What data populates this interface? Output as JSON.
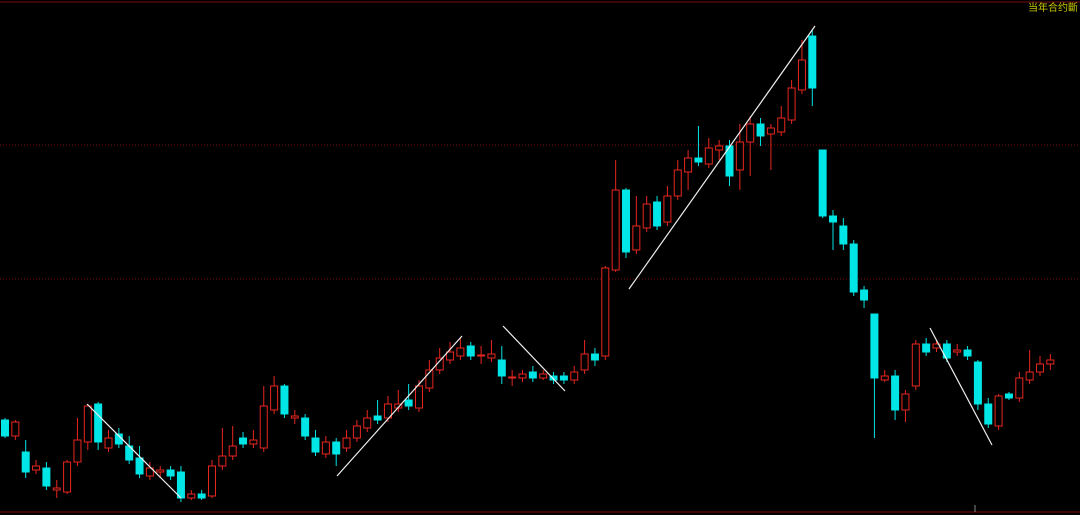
{
  "chart_data": {
    "type": "candlestick",
    "label": "当年合约斷",
    "up_color": "#e8261f",
    "down_color": "#00e5e5",
    "ylim": [
      0,
      515
    ],
    "open": [
      95,
      79,
      63,
      45,
      47,
      25,
      23,
      53,
      73,
      111,
      67,
      81,
      69,
      57,
      39,
      43,
      45,
      43,
      17,
      21,
      19,
      49,
      59,
      77,
      71,
      67,
      105,
      129,
      97,
      97,
      77,
      61,
      73,
      67,
      77,
      87,
      99,
      97,
      107,
      115,
      107,
      127,
      145,
      155,
      159,
      169,
      159,
      157,
      155,
      137,
      137,
      143,
      137,
      139,
      139,
      135,
      145,
      161,
      159,
      245,
      325,
      265,
      287,
      313,
      293,
      319,
      343,
      357,
      351,
      365,
      369,
      345,
      373,
      391,
      381,
      383,
      395,
      425,
      479,
      365,
      299,
      289,
      271,
      225,
      201,
      135,
      139,
      105,
      129,
      171,
      167,
      171,
      163,
      165,
      153,
      111,
      89,
      121,
      117,
      135,
      143,
      151
    ],
    "high": [
      97,
      95,
      75,
      55,
      53,
      35,
      55,
      97,
      111,
      113,
      85,
      87,
      79,
      69,
      53,
      49,
      49,
      49,
      25,
      25,
      55,
      87,
      89,
      83,
      85,
      129,
      139,
      131,
      105,
      101,
      85,
      79,
      77,
      85,
      95,
      105,
      115,
      119,
      125,
      131,
      135,
      155,
      167,
      173,
      177,
      173,
      169,
      175,
      169,
      145,
      145,
      149,
      145,
      143,
      143,
      149,
      175,
      167,
      249,
      355,
      327,
      319,
      319,
      319,
      329,
      355,
      365,
      389,
      377,
      375,
      375,
      391,
      399,
      397,
      391,
      409,
      435,
      475,
      485,
      365,
      305,
      297,
      275,
      229,
      201,
      145,
      145,
      125,
      175,
      177,
      175,
      175,
      171,
      169,
      155,
      117,
      121,
      123,
      143,
      165,
      159,
      161
    ],
    "low": [
      77,
      75,
      37,
      41,
      25,
      17,
      21,
      49,
      65,
      65,
      63,
      67,
      51,
      37,
      35,
      37,
      35,
      13,
      15,
      15,
      17,
      45,
      55,
      67,
      67,
      63,
      101,
      97,
      91,
      75,
      59,
      57,
      49,
      63,
      73,
      83,
      91,
      93,
      103,
      105,
      103,
      123,
      141,
      151,
      155,
      155,
      151,
      153,
      131,
      129,
      133,
      133,
      135,
      131,
      131,
      131,
      141,
      149,
      155,
      243,
      257,
      261,
      283,
      285,
      289,
      315,
      325,
      349,
      347,
      355,
      329,
      325,
      339,
      369,
      345,
      379,
      391,
      421,
      409,
      297,
      265,
      265,
      219,
      207,
      77,
      133,
      95,
      93,
      125,
      159,
      163,
      153,
      159,
      155,
      105,
      87,
      85,
      115,
      113,
      131,
      139,
      145
    ],
    "close": [
      79,
      93,
      43,
      49,
      29,
      27,
      53,
      75,
      109,
      73,
      77,
      71,
      55,
      41,
      47,
      45,
      39,
      17,
      21,
      17,
      49,
      59,
      69,
      71,
      75,
      109,
      129,
      101,
      99,
      79,
      63,
      73,
      61,
      77,
      89,
      97,
      95,
      111,
      111,
      109,
      129,
      145,
      157,
      163,
      167,
      159,
      160,
      161,
      139,
      138,
      141,
      137,
      141,
      135,
      135,
      143,
      161,
      155,
      247,
      325,
      263,
      289,
      311,
      289,
      319,
      345,
      357,
      353,
      367,
      369,
      339,
      373,
      391,
      379,
      387,
      397,
      427,
      455,
      427,
      299,
      293,
      271,
      223,
      215,
      137,
      139,
      105,
      121,
      171,
      163,
      171,
      157,
      165,
      159,
      111,
      91,
      119,
      117,
      137,
      143,
      151,
      155
    ]
  }
}
